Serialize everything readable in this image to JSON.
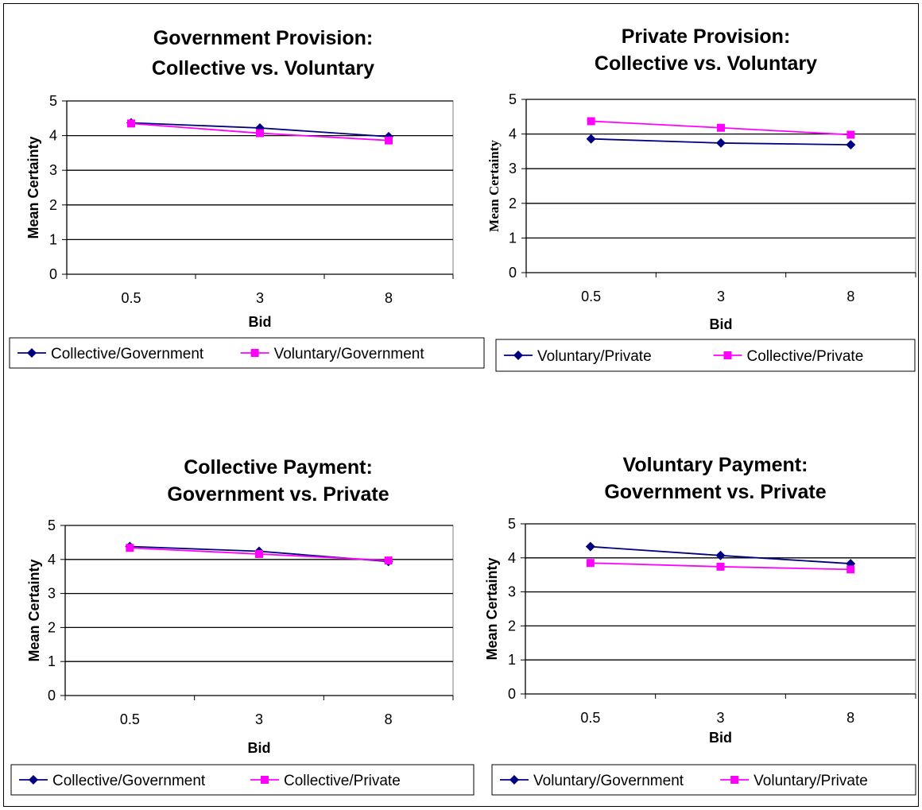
{
  "colors": {
    "series_a": "#000080",
    "series_b": "#FF00FF"
  },
  "chart_data": [
    {
      "type": "line",
      "title": [
        "Government Provision:",
        "Collective vs. Voluntary"
      ],
      "xlabel": "Bid",
      "ylabel": "Mean Certainty",
      "categories": [
        "0.5",
        "3",
        "8"
      ],
      "ylim": [
        0,
        5
      ],
      "yticks": [
        "0",
        "1",
        "2",
        "3",
        "4",
        "5"
      ],
      "grid": true,
      "legend_position": "bottom",
      "series": [
        {
          "name": "Collective/Government",
          "marker": "diamond",
          "values": [
            4.37,
            4.22,
            3.97
          ]
        },
        {
          "name": "Voluntary/Government",
          "marker": "square",
          "values": [
            4.35,
            4.07,
            3.86
          ]
        }
      ]
    },
    {
      "type": "line",
      "title": [
        "Private Provision:",
        "Collective vs. Voluntary"
      ],
      "xlabel": "Bid",
      "ylabel": "Mean Certainty",
      "categories": [
        "0.5",
        "3",
        "8"
      ],
      "ylim": [
        0,
        5
      ],
      "yticks": [
        "0",
        "1",
        "2",
        "3",
        "4",
        "5"
      ],
      "grid": true,
      "legend_position": "bottom",
      "series": [
        {
          "name": "Voluntary/Private",
          "marker": "diamond",
          "values": [
            3.86,
            3.74,
            3.69
          ]
        },
        {
          "name": "Collective/Private",
          "marker": "square",
          "values": [
            4.37,
            4.18,
            3.98
          ]
        }
      ]
    },
    {
      "type": "line",
      "title": [
        "Collective Payment:",
        "Government vs. Private"
      ],
      "xlabel": "Bid",
      "ylabel": "Mean Certainty",
      "categories": [
        "0.5",
        "3",
        "8"
      ],
      "ylim": [
        0,
        5
      ],
      "yticks": [
        "0",
        "1",
        "2",
        "3",
        "4",
        "5"
      ],
      "grid": true,
      "legend_position": "bottom",
      "series": [
        {
          "name": "Collective/Government",
          "marker": "diamond",
          "values": [
            4.38,
            4.24,
            3.94
          ]
        },
        {
          "name": "Collective/Private",
          "marker": "square",
          "values": [
            4.34,
            4.16,
            3.97
          ]
        }
      ]
    },
    {
      "type": "line",
      "title": [
        "Voluntary Payment:",
        "Government vs. Private"
      ],
      "xlabel": "Bid",
      "ylabel": "Mean Certainty",
      "categories": [
        "0.5",
        "3",
        "8"
      ],
      "ylim": [
        0,
        5
      ],
      "yticks": [
        "0",
        "1",
        "2",
        "3",
        "4",
        "5"
      ],
      "grid": true,
      "legend_position": "bottom",
      "series": [
        {
          "name": "Voluntary/Government",
          "marker": "diamond",
          "values": [
            4.33,
            4.07,
            3.83
          ]
        },
        {
          "name": "Voluntary/Private",
          "marker": "square",
          "values": [
            3.85,
            3.74,
            3.66
          ]
        }
      ]
    }
  ]
}
